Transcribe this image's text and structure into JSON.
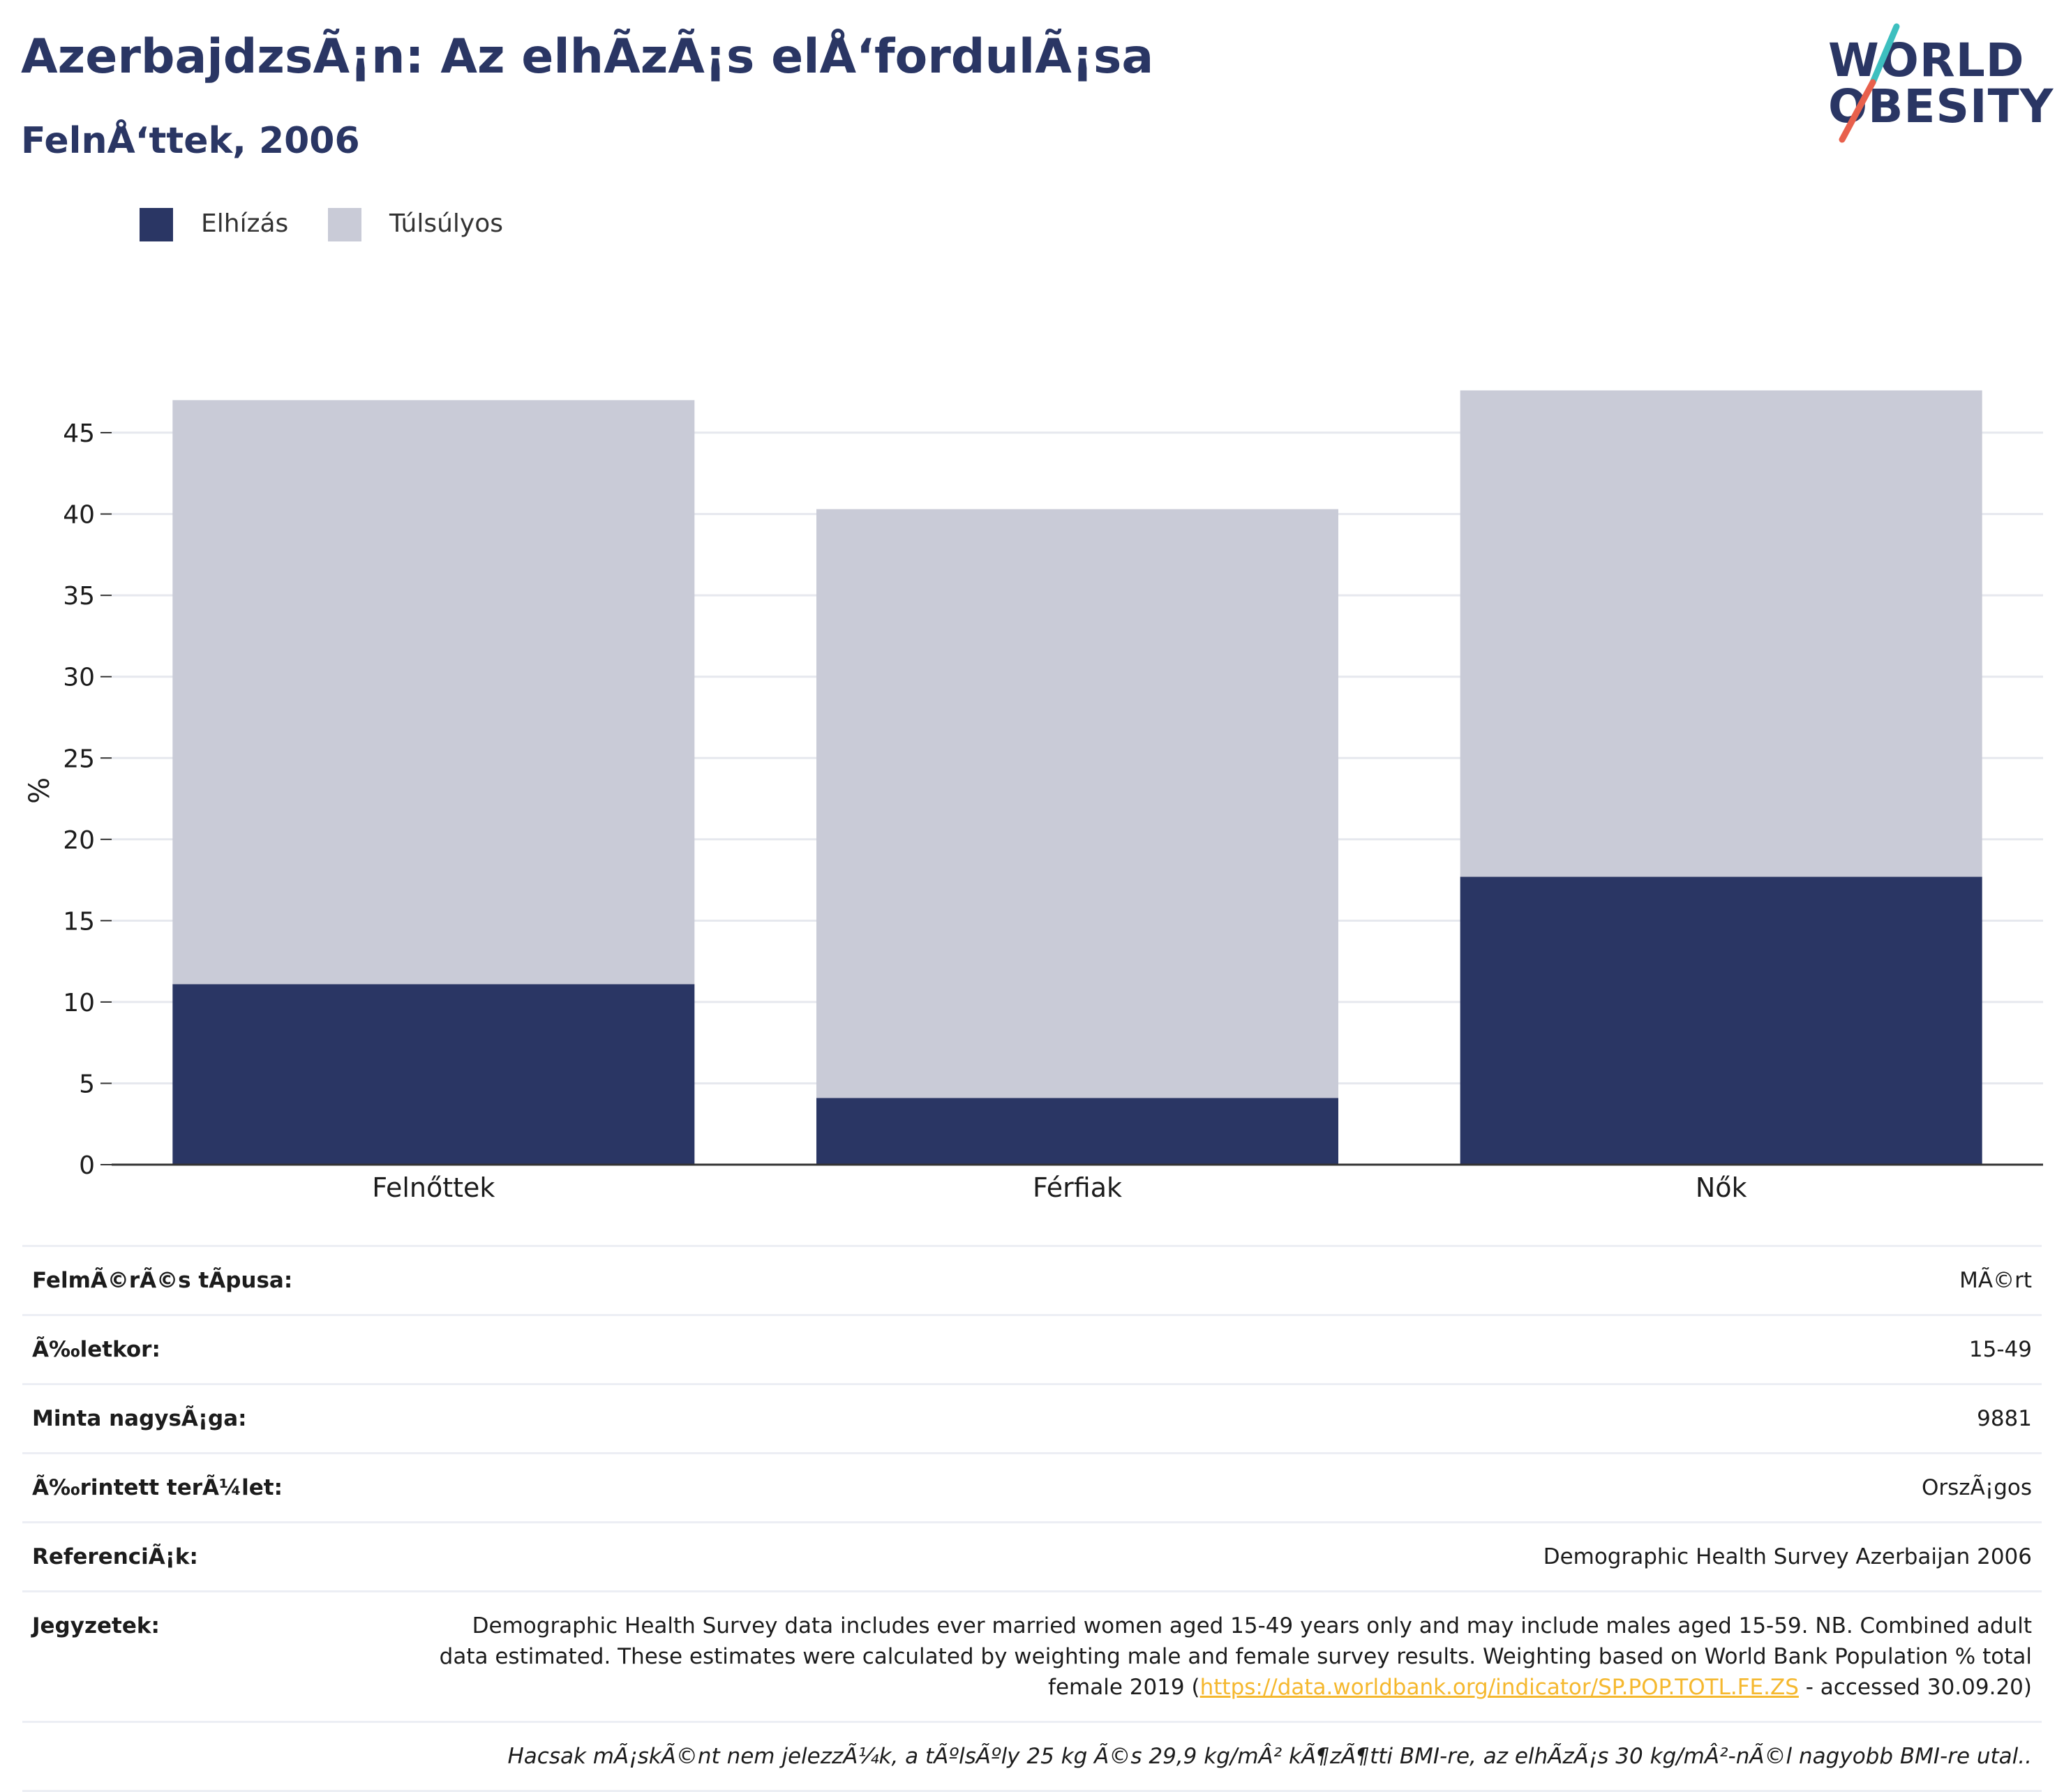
{
  "header": {
    "title": "AzerbajdzsÃ¡n: Az elhÃ­zÃ¡s elÅ‘fordulÃ¡sa",
    "subtitle": "FelnÅ‘ttek, 2006"
  },
  "logo": {
    "line1": "WORLD",
    "line2": "OBESITY",
    "accent_colors": [
      "#3dbfbf",
      "#e8604c"
    ]
  },
  "chart_data": {
    "type": "bar",
    "stacked": true,
    "categories": [
      "Felnőttek",
      "Férfiak",
      "Nők"
    ],
    "series": [
      {
        "name": "Elhízás",
        "color": "#2a3664",
        "values": [
          11.1,
          4.1,
          17.7
        ]
      },
      {
        "name": "Túlsúlyos",
        "color": "#c9cbd7",
        "values": [
          35.9,
          36.2,
          29.9
        ]
      }
    ],
    "ylabel": "%",
    "ylim": [
      0,
      50
    ],
    "yticks": [
      0,
      5,
      10,
      15,
      20,
      25,
      30,
      35,
      40,
      45
    ],
    "grid": true,
    "legend": "top-left"
  },
  "info_table": {
    "survey_type": {
      "label": "FelmÃ©rÃ©s tÃpusa:",
      "value": "MÃ©rt"
    },
    "age": {
      "label": "Ã‰letkor:",
      "value": "15-49"
    },
    "sample_size": {
      "label": "Minta nagysÃ¡ga:",
      "value": "9881"
    },
    "area": {
      "label": "Ã‰rintett terÃ¼let:",
      "value": "OrszÃ¡gos"
    },
    "references": {
      "label": "ReferenciÃ¡k:",
      "value": "Demographic Health Survey Azerbaijan 2006"
    },
    "notes": {
      "label": "Jegyzetek:",
      "text_before_link": "Demographic Health Survey data includes ever married women aged 15-49 years only and may include males aged 15-59. NB. Combined adult data estimated. These estimates were calculated by weighting male and female survey results. Weighting based on World Bank Population % total female 2019 (",
      "link": "https://data.worldbank.org/indicator/SP.POP.TOTL.FE.ZS",
      "text_after_link": " - accessed 30.09.20)"
    },
    "footnote": "Hacsak mÃ¡skÃ©nt nem jelezzÃ¼k, a tÃºlsÃºly 25 kg Ã©s 29,9 kg/mÂ² kÃ¶zÃ¶tti BMI-re, az elhÃ­zÃ¡s 30 kg/mÂ²-nÃ©l nagyobb BMI-re utal.."
  }
}
